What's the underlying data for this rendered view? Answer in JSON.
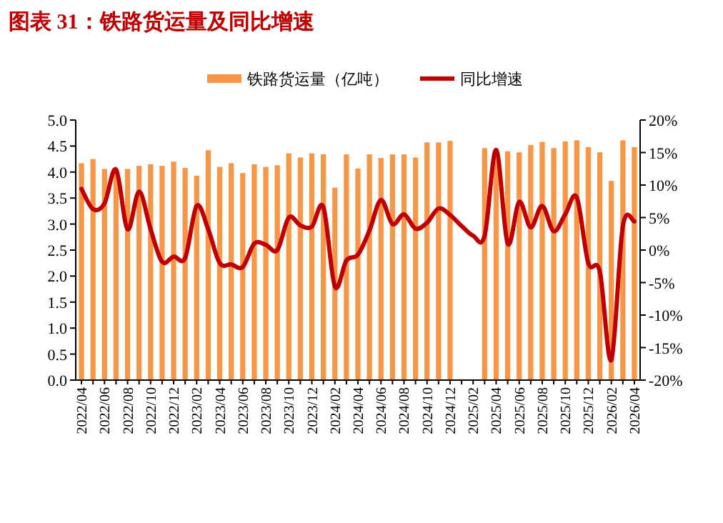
{
  "chart_data": {
    "type": "bar",
    "title": "图表 31：铁路货运量及同比增速",
    "categories": [
      "2022/04",
      null,
      "2022/06",
      null,
      "2022/08",
      null,
      "2022/10",
      null,
      "2022/12",
      null,
      "2023/02",
      null,
      "2023/04",
      null,
      "2023/06",
      null,
      "2023/08",
      null,
      "2023/10",
      null,
      "2023/12",
      null,
      "2024/02",
      null,
      "2024/04",
      null,
      "2024/06",
      null,
      "2024/08",
      null,
      "2024/10",
      null,
      "2024/12",
      null,
      "2025/02",
      null,
      "2025/04",
      null,
      "2025/06",
      null,
      "2025/08",
      null,
      "2025/10",
      null,
      "2025/12",
      null,
      "2026/02",
      null,
      "2026/04"
    ],
    "series": [
      {
        "name": "铁路货运量（亿吨）",
        "color": "#f79646",
        "values": [
          4.17,
          4.25,
          4.06,
          4.05,
          4.06,
          4.12,
          4.15,
          4.12,
          4.2,
          4.08,
          3.93,
          4.42,
          4.1,
          4.17,
          3.98,
          4.15,
          4.1,
          4.13,
          4.36,
          4.28,
          4.36,
          4.34,
          3.7,
          4.34,
          4.07,
          4.34,
          4.27,
          4.34,
          4.34,
          4.28,
          4.57,
          4.57,
          4.6,
          null,
          null,
          4.46,
          4.43,
          4.4,
          4.38,
          4.52,
          4.58,
          4.46,
          4.59,
          4.61,
          4.48,
          4.38,
          3.83,
          4.61,
          4.48
        ]
      },
      {
        "name": "同比增速",
        "type": "line",
        "axis": "y2",
        "color": "#c00000",
        "values": [
          9.4,
          6.3,
          7.2,
          12.4,
          3.2,
          9.0,
          3.2,
          -1.8,
          -1.0,
          -1.2,
          6.8,
          3.2,
          -2.0,
          -2.2,
          -2.6,
          1.0,
          0.8,
          0.0,
          5.0,
          3.8,
          3.6,
          6.6,
          -5.6,
          -1.6,
          -0.7,
          3.0,
          7.7,
          4.0,
          5.5,
          3.3,
          4.2,
          6.4,
          5.4,
          3.7,
          2.2,
          2.2,
          15.4,
          1.0,
          7.4,
          3.5,
          6.8,
          2.9,
          5.5,
          8.1,
          -2.0,
          -3.3,
          -16.9,
          3.7,
          4.4
        ]
      }
    ],
    "ylim": [
      0,
      5
    ],
    "yticks": [
      {
        "value": 0,
        "label": "0.0"
      },
      {
        "value": 0.5,
        "label": "0.5"
      },
      {
        "value": 1,
        "label": "1.0"
      },
      {
        "value": 1.5,
        "label": "1.5"
      },
      {
        "value": 2,
        "label": "2.0"
      },
      {
        "value": 2.5,
        "label": "2.5"
      },
      {
        "value": 3,
        "label": "3.0"
      },
      {
        "value": 3.5,
        "label": "3.5"
      },
      {
        "value": 4,
        "label": "4.0"
      },
      {
        "value": 4.5,
        "label": "4.5"
      },
      {
        "value": 5,
        "label": "5.0"
      }
    ],
    "y2lim": [
      -20,
      20
    ],
    "y2ticks": [
      {
        "value": -20,
        "label": "-20%"
      },
      {
        "value": -15,
        "label": "-15%"
      },
      {
        "value": -10,
        "label": "-10%"
      },
      {
        "value": -5,
        "label": "-5%"
      },
      {
        "value": 0,
        "label": "0%"
      },
      {
        "value": 5,
        "label": "5%"
      },
      {
        "value": 10,
        "label": "10%"
      },
      {
        "value": 15,
        "label": "15%"
      },
      {
        "value": 20,
        "label": "20%"
      }
    ],
    "legend": "top",
    "grid": false
  }
}
